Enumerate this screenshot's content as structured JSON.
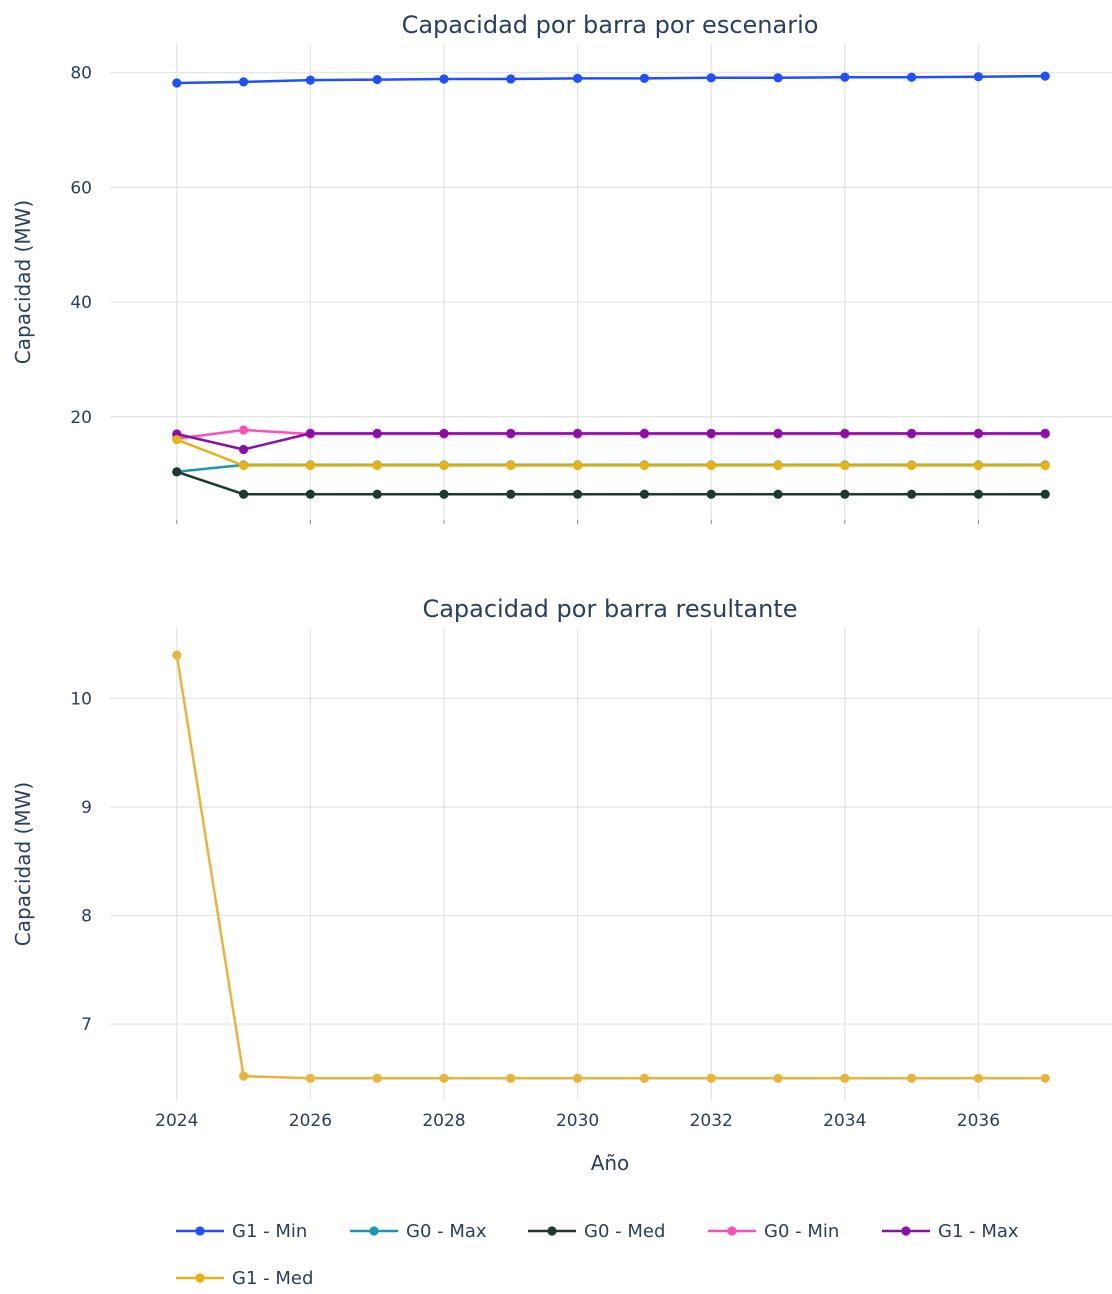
{
  "chart_data": [
    {
      "type": "line",
      "title": "Capacidad por barra por escenario",
      "ylabel": "Capacidad (MW)",
      "xlabel": "",
      "x": [
        2024,
        2025,
        2026,
        2027,
        2028,
        2029,
        2030,
        2031,
        2032,
        2033,
        2034,
        2035,
        2036,
        2037
      ],
      "xlim": [
        2023,
        2038
      ],
      "ylim": [
        2,
        85
      ],
      "yticks": [
        20,
        40,
        60,
        80
      ],
      "grid": true,
      "series": [
        {
          "name": "G1 - Min",
          "color": "#1f50ff",
          "values": [
            78.2,
            78.4,
            78.7,
            78.8,
            78.9,
            78.9,
            79.0,
            79.0,
            79.1,
            79.1,
            79.2,
            79.2,
            79.3,
            79.4
          ]
        },
        {
          "name": "G0 - Max",
          "color": "#1a96b8",
          "values": [
            10.4,
            11.6,
            11.6,
            11.6,
            11.6,
            11.6,
            11.6,
            11.6,
            11.6,
            11.6,
            11.6,
            11.6,
            11.6,
            11.6
          ]
        },
        {
          "name": "G0 - Med",
          "color": "#1c3a2e",
          "values": [
            10.4,
            6.5,
            6.5,
            6.5,
            6.5,
            6.5,
            6.5,
            6.5,
            6.5,
            6.5,
            6.5,
            6.5,
            6.5,
            6.5
          ]
        },
        {
          "name": "G0 - Min",
          "color": "#ff4fb6",
          "values": [
            16.2,
            17.7,
            17.0,
            17.0,
            17.0,
            17.0,
            17.0,
            17.0,
            17.0,
            17.0,
            17.0,
            17.0,
            17.0,
            17.0
          ]
        },
        {
          "name": "G1 - Max",
          "color": "#8a0fa8",
          "values": [
            17.0,
            14.3,
            17.1,
            17.1,
            17.1,
            17.1,
            17.1,
            17.1,
            17.1,
            17.1,
            17.1,
            17.1,
            17.1,
            17.1
          ]
        },
        {
          "name": "G1 - Med",
          "color": "#e8b212",
          "values": [
            16.0,
            11.5,
            11.5,
            11.5,
            11.5,
            11.5,
            11.5,
            11.5,
            11.5,
            11.5,
            11.5,
            11.5,
            11.5,
            11.5
          ]
        }
      ]
    },
    {
      "type": "line",
      "title": "Capacidad por barra resultante",
      "ylabel": "Capacidad (MW)",
      "xlabel": "Año",
      "x": [
        2024,
        2025,
        2026,
        2027,
        2028,
        2029,
        2030,
        2031,
        2032,
        2033,
        2034,
        2035,
        2036,
        2037
      ],
      "xlim": [
        2023,
        2038
      ],
      "ylim": [
        6.3,
        10.65
      ],
      "xticks": [
        2024,
        2026,
        2028,
        2030,
        2032,
        2034,
        2036
      ],
      "yticks": [
        7,
        8,
        9,
        10
      ],
      "grid": true,
      "series": [
        {
          "name": "",
          "color": "#e8b43a",
          "values": [
            10.4,
            6.52,
            6.5,
            6.5,
            6.5,
            6.5,
            6.5,
            6.5,
            6.5,
            6.5,
            6.5,
            6.5,
            6.5,
            6.5
          ]
        }
      ]
    }
  ],
  "legend": {
    "placement": "bottom",
    "items": [
      {
        "label": "G1  -  Min",
        "color": "#1f50ff"
      },
      {
        "label": "G0  -  Max",
        "color": "#1a96b8"
      },
      {
        "label": "G0  -  Med",
        "color": "#1c3a2e"
      },
      {
        "label": "G0  -  Min",
        "color": "#ff4fb6"
      },
      {
        "label": "G1  -  Max",
        "color": "#8a0fa8"
      },
      {
        "label": "G1  -  Med",
        "color": "#e8b212"
      }
    ]
  }
}
